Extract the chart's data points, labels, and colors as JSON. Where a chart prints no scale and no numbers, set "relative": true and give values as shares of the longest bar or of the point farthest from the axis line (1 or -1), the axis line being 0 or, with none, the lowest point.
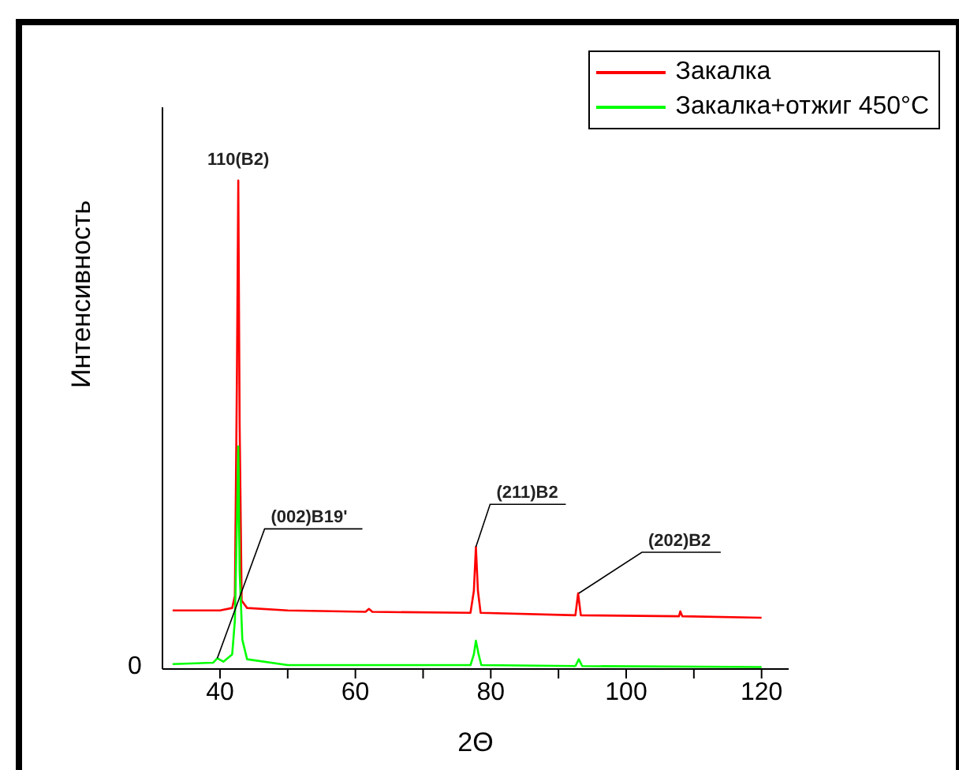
{
  "chart_data": {
    "type": "line",
    "relative": true,
    "xlabel": "2Θ",
    "ylabel": "Интенсивность",
    "xlim": [
      31.5,
      124
    ],
    "xticks": [
      40,
      {
        "value": 50,
        "label": null
      },
      60,
      {
        "value": 70,
        "label": null
      },
      80,
      {
        "value": 90,
        "label": null
      },
      100,
      {
        "value": 110,
        "label": null
      },
      120
    ],
    "grid": false,
    "legend": "top right",
    "marker": "none",
    "line_style": "solid",
    "series": [
      {
        "name": "Закалка",
        "color": "#ff0000",
        "x": [
          33,
          40,
          41.8,
          42.2,
          42.5,
          42.7,
          42.9,
          43.2,
          44,
          50,
          61.5,
          62,
          62.5,
          77,
          77.5,
          77.8,
          78.1,
          78.5,
          92.5,
          92.9,
          93.3,
          107.8,
          108,
          108.3,
          120
        ],
        "values": [
          0.12,
          0.12,
          0.125,
          0.15,
          0.6,
          1,
          0.5,
          0.14,
          0.125,
          0.12,
          0.117,
          0.123,
          0.117,
          0.115,
          0.16,
          0.25,
          0.16,
          0.115,
          0.11,
          0.155,
          0.11,
          0.108,
          0.118,
          0.108,
          0.105
        ]
      },
      {
        "name": "Закалка+отжиг 450°C",
        "color": "#00ff00",
        "x": [
          33,
          39,
          39.6,
          40.5,
          41.8,
          42.2,
          42.5,
          42.7,
          42.9,
          43.3,
          44,
          50,
          77,
          77.5,
          77.8,
          78.2,
          78.6,
          92.5,
          93,
          93.5,
          120
        ],
        "values": [
          0.01,
          0.013,
          0.022,
          0.015,
          0.03,
          0.1,
          0.3,
          0.456,
          0.2,
          0.06,
          0.02,
          0.008,
          0.008,
          0.03,
          0.058,
          0.03,
          0.008,
          0.006,
          0.02,
          0.006,
          0.004
        ]
      }
    ],
    "annotations": [
      {
        "text": "110(B2)",
        "x": 42.7,
        "y": 1
      },
      {
        "text": "(002)B19'",
        "x": 39.6,
        "y": 0.022
      },
      {
        "text": "(211)B2",
        "x": 77.8,
        "y": 0.25
      },
      {
        "text": "(202)B2",
        "x": 93,
        "y": 0.155
      },
      "0"
    ]
  }
}
